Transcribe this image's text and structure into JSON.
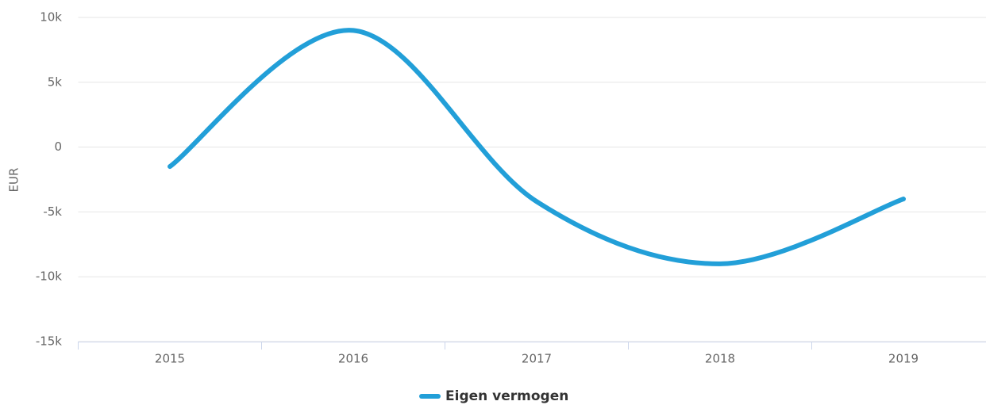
{
  "chart_data": {
    "type": "line",
    "y_axis_label": "EUR",
    "categories": [
      "2015",
      "2016",
      "2017",
      "2018",
      "2019"
    ],
    "series": [
      {
        "name": "Eigen vermogen",
        "color": "#229fd8",
        "values": [
          -1500,
          9000,
          -4200,
          -9000,
          -4000
        ]
      }
    ],
    "ylim": [
      -15000,
      10000
    ],
    "yticks": [
      {
        "value": -15000,
        "label": "-15k"
      },
      {
        "value": -10000,
        "label": "-10k"
      },
      {
        "value": -5000,
        "label": "-5k"
      },
      0,
      {
        "value": 5000,
        "label": "5k"
      },
      {
        "value": 10000,
        "label": "10k"
      }
    ],
    "grid": true,
    "legend": "bottom"
  }
}
